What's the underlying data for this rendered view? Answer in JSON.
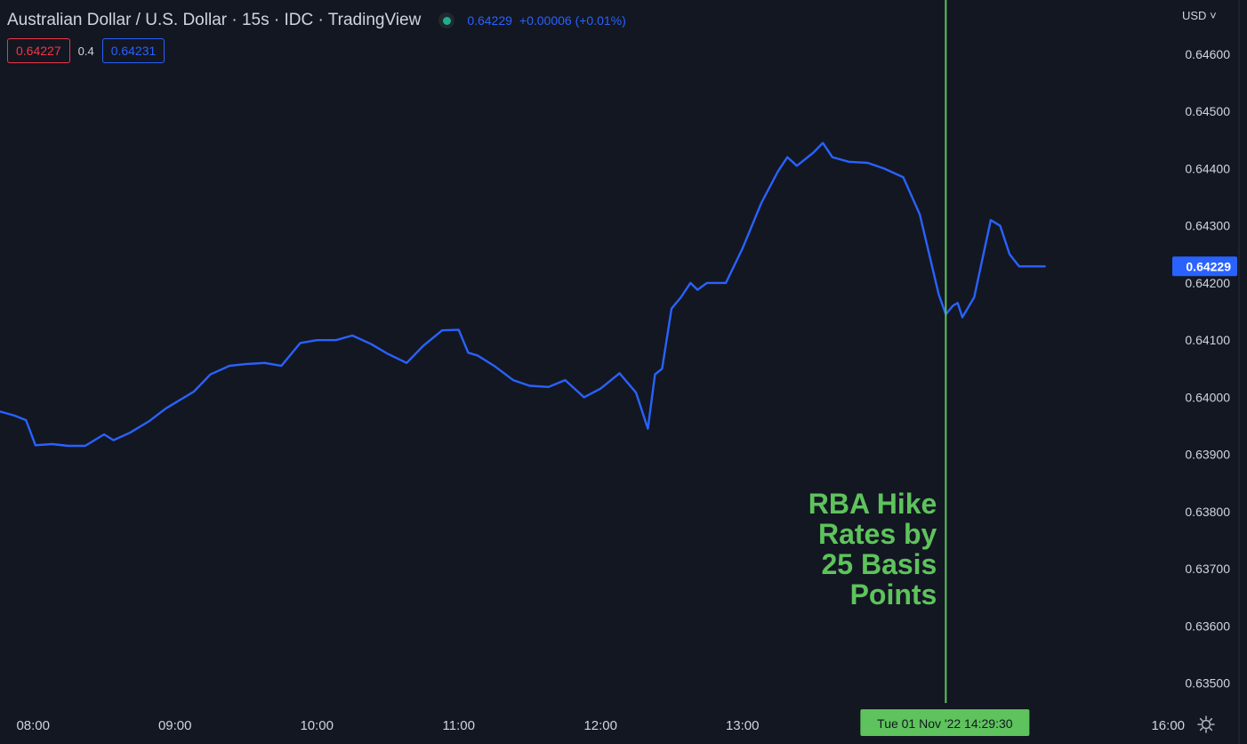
{
  "header": {
    "title": "Australian Dollar / U.S. Dollar · 15s · IDC · TradingView",
    "last_price": "0.64229",
    "change": "+0.00006 (+0.01%)",
    "status_color": "#22ab94"
  },
  "quote": {
    "bid": "0.64227",
    "spread": "0.4",
    "ask": "0.64231"
  },
  "currency_menu": "USD",
  "colors": {
    "background": "#131722",
    "line": "#2962ff",
    "annotation": "#5ec35c",
    "bid": "#f23645",
    "axis_text": "#d1d4dc"
  },
  "chart_data": {
    "type": "line",
    "title": "Australian Dollar / U.S. Dollar",
    "xlabel": "",
    "ylabel": "",
    "series": [
      {
        "x": [
          "07:46",
          "07:52",
          "07:57",
          "08:01",
          "08:08",
          "08:15",
          "08:22",
          "08:30",
          "08:34",
          "08:41",
          "08:49",
          "08:56",
          "09:00",
          "09:08",
          "09:15",
          "09:23",
          "09:30",
          "09:38",
          "09:45",
          "09:53",
          "10:00",
          "10:08",
          "10:15",
          "10:23",
          "10:30",
          "10:38",
          "10:45",
          "10:53",
          "11:00",
          "11:04",
          "11:08",
          "11:15",
          "11:23",
          "11:30",
          "11:38",
          "11:45",
          "11:53",
          "12:00",
          "12:08",
          "12:15",
          "12:20",
          "12:23",
          "12:26",
          "12:30",
          "12:34",
          "12:38",
          "12:41",
          "12:45",
          "12:53",
          "13:00",
          "13:08",
          "13:15",
          "13:19",
          "13:23",
          "13:30",
          "13:34",
          "13:38",
          "13:45",
          "13:53",
          "14:00",
          "14:08",
          "14:15",
          "14:23",
          "14:26",
          "14:29",
          "14:31",
          "14:33",
          "14:38",
          "14:45",
          "14:49",
          "14:53",
          "14:57",
          "15:00",
          "15:04",
          "15:08"
        ],
        "values": [
          0.63975,
          0.63968,
          0.6396,
          0.63916,
          0.63918,
          0.63915,
          0.63915,
          0.63935,
          0.63925,
          0.63938,
          0.63958,
          0.6398,
          0.6399,
          0.6401,
          0.6404,
          0.64055,
          0.64058,
          0.6406,
          0.64055,
          0.64095,
          0.641,
          0.641,
          0.64108,
          0.64093,
          0.64076,
          0.6406,
          0.6409,
          0.64117,
          0.64118,
          0.64078,
          0.64073,
          0.64055,
          0.6403,
          0.6402,
          0.64018,
          0.6403,
          0.64,
          0.64015,
          0.64042,
          0.64008,
          0.63945,
          0.6404,
          0.6405,
          0.64155,
          0.64175,
          0.642,
          0.64188,
          0.642,
          0.642,
          0.6426,
          0.6434,
          0.64395,
          0.6442,
          0.64405,
          0.64428,
          0.64445,
          0.6442,
          0.64412,
          0.6441,
          0.644,
          0.64385,
          0.6432,
          0.6418,
          0.64145,
          0.6416,
          0.64165,
          0.6414,
          0.64175,
          0.6431,
          0.643,
          0.6425,
          0.64229,
          0.64229,
          0.64229,
          0.64229
        ]
      }
    ],
    "x_ticks": [
      "08:00",
      "09:00",
      "10:00",
      "11:00",
      "12:00",
      "13:00",
      "16:00"
    ],
    "y_ticks": [
      "0.64600",
      "0.64500",
      "0.64400",
      "0.64300",
      "0.64200",
      "0.64100",
      "0.64000",
      "0.63900",
      "0.63800",
      "0.63700",
      "0.63600",
      "0.63500"
    ],
    "ylim": [
      0.63465,
      0.64695
    ],
    "xlim": [
      "07:46",
      "16:30"
    ],
    "grid": false,
    "price_label": "0.64229",
    "annotation": {
      "lines": [
        "RBA Hike",
        "Rates by",
        "25 Basis",
        "Points"
      ],
      "time": "14:26",
      "crosshair_label": "Tue 01 Nov '22   14:29:30"
    }
  }
}
